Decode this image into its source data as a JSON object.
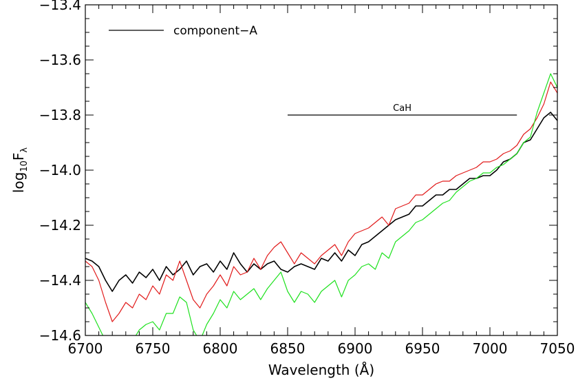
{
  "chart_data": {
    "type": "line",
    "title": "",
    "xlabel": "Wavelength (Å)",
    "ylabel_base": "log",
    "ylabel_sub": "10",
    "ylabel_main": "F",
    "ylabel_main_sub": "λ",
    "xlim": [
      6700,
      7050
    ],
    "ylim": [
      -14.6,
      -13.4
    ],
    "x_ticks": [
      6700,
      6750,
      6800,
      6850,
      6900,
      6950,
      7000,
      7050
    ],
    "x_tick_labels": [
      "6700",
      "6750",
      "6800",
      "6850",
      "6900",
      "6950",
      "7000",
      "7050"
    ],
    "y_ticks": [
      -14.6,
      -14.4,
      -14.2,
      -14.0,
      -13.8,
      -13.6,
      -13.4
    ],
    "y_tick_labels": [
      "−14.6",
      "−14.4",
      "−14.2",
      "−14.0",
      "−13.8",
      "−13.6",
      "−13.4"
    ],
    "grid": false,
    "legend": {
      "placement": "top-left",
      "entries": [
        {
          "label": "component−A",
          "color": "#000000"
        }
      ]
    },
    "annotation": {
      "label": "CaH",
      "x_start": 6850,
      "x_end": 7020,
      "y": -13.8
    },
    "series": [
      {
        "color": "#000000",
        "x": [
          6700,
          6705,
          6710,
          6715,
          6720,
          6725,
          6730,
          6735,
          6740,
          6745,
          6750,
          6755,
          6760,
          6765,
          6770,
          6775,
          6780,
          6785,
          6790,
          6795,
          6800,
          6805,
          6810,
          6815,
          6820,
          6825,
          6830,
          6835,
          6840,
          6845,
          6850,
          6855,
          6860,
          6865,
          6870,
          6875,
          6880,
          6885,
          6890,
          6895,
          6900,
          6905,
          6910,
          6915,
          6920,
          6925,
          6930,
          6935,
          6940,
          6945,
          6950,
          6955,
          6960,
          6965,
          6970,
          6975,
          6980,
          6985,
          6990,
          6995,
          7000,
          7005,
          7010,
          7015,
          7020,
          7025,
          7030,
          7035,
          7040,
          7045,
          7050
        ],
        "y": [
          -14.32,
          -14.33,
          -14.35,
          -14.4,
          -14.44,
          -14.4,
          -14.38,
          -14.41,
          -14.37,
          -14.39,
          -14.36,
          -14.4,
          -14.35,
          -14.38,
          -14.36,
          -14.33,
          -14.38,
          -14.35,
          -14.34,
          -14.37,
          -14.33,
          -14.36,
          -14.3,
          -14.34,
          -14.37,
          -14.34,
          -14.36,
          -14.34,
          -14.33,
          -14.36,
          -14.37,
          -14.35,
          -14.34,
          -14.35,
          -14.36,
          -14.32,
          -14.33,
          -14.3,
          -14.33,
          -14.29,
          -14.31,
          -14.27,
          -14.26,
          -14.24,
          -14.22,
          -14.2,
          -14.18,
          -14.17,
          -14.16,
          -14.13,
          -14.13,
          -14.11,
          -14.09,
          -14.09,
          -14.07,
          -14.07,
          -14.05,
          -14.03,
          -14.03,
          -14.02,
          -14.02,
          -14.0,
          -13.97,
          -13.96,
          -13.94,
          -13.9,
          -13.89,
          -13.85,
          -13.81,
          -13.79,
          -13.82
        ]
      },
      {
        "color": "#e11a1a",
        "x": [
          6700,
          6705,
          6710,
          6715,
          6720,
          6725,
          6730,
          6735,
          6740,
          6745,
          6750,
          6755,
          6760,
          6765,
          6770,
          6775,
          6780,
          6785,
          6790,
          6795,
          6800,
          6805,
          6810,
          6815,
          6820,
          6825,
          6830,
          6835,
          6840,
          6845,
          6850,
          6855,
          6860,
          6865,
          6870,
          6875,
          6880,
          6885,
          6890,
          6895,
          6900,
          6905,
          6910,
          6915,
          6920,
          6925,
          6930,
          6935,
          6940,
          6945,
          6950,
          6955,
          6960,
          6965,
          6970,
          6975,
          6980,
          6985,
          6990,
          6995,
          7000,
          7005,
          7010,
          7015,
          7020,
          7025,
          7030,
          7035,
          7040,
          7045,
          7050
        ],
        "y": [
          -14.33,
          -14.35,
          -14.4,
          -14.48,
          -14.55,
          -14.52,
          -14.48,
          -14.5,
          -14.45,
          -14.47,
          -14.42,
          -14.45,
          -14.38,
          -14.4,
          -14.33,
          -14.4,
          -14.47,
          -14.5,
          -14.45,
          -14.42,
          -14.38,
          -14.42,
          -14.35,
          -14.38,
          -14.37,
          -14.32,
          -14.36,
          -14.31,
          -14.28,
          -14.26,
          -14.3,
          -14.34,
          -14.3,
          -14.32,
          -14.34,
          -14.31,
          -14.29,
          -14.27,
          -14.31,
          -14.26,
          -14.23,
          -14.22,
          -14.21,
          -14.19,
          -14.17,
          -14.2,
          -14.14,
          -14.13,
          -14.12,
          -14.09,
          -14.09,
          -14.07,
          -14.05,
          -14.04,
          -14.04,
          -14.02,
          -14.01,
          -14.0,
          -13.99,
          -13.97,
          -13.97,
          -13.96,
          -13.94,
          -13.93,
          -13.91,
          -13.87,
          -13.85,
          -13.81,
          -13.76,
          -13.68,
          -13.72
        ]
      },
      {
        "color": "#1ee11e",
        "x": [
          6700,
          6705,
          6710,
          6715,
          6720,
          6725,
          6730,
          6735,
          6740,
          6745,
          6750,
          6755,
          6760,
          6765,
          6770,
          6775,
          6780,
          6785,
          6790,
          6795,
          6800,
          6805,
          6810,
          6815,
          6820,
          6825,
          6830,
          6835,
          6840,
          6845,
          6850,
          6855,
          6860,
          6865,
          6870,
          6875,
          6880,
          6885,
          6890,
          6895,
          6900,
          6905,
          6910,
          6915,
          6920,
          6925,
          6930,
          6935,
          6940,
          6945,
          6950,
          6955,
          6960,
          6965,
          6970,
          6975,
          6980,
          6985,
          6990,
          6995,
          7000,
          7005,
          7010,
          7015,
          7020,
          7025,
          7030,
          7035,
          7040,
          7045,
          7050
        ],
        "y": [
          -14.48,
          -14.52,
          -14.57,
          -14.62,
          -14.66,
          -14.64,
          -14.6,
          -14.62,
          -14.58,
          -14.56,
          -14.55,
          -14.58,
          -14.52,
          -14.52,
          -14.46,
          -14.48,
          -14.58,
          -14.62,
          -14.56,
          -14.52,
          -14.47,
          -14.5,
          -14.44,
          -14.47,
          -14.45,
          -14.43,
          -14.47,
          -14.43,
          -14.4,
          -14.37,
          -14.44,
          -14.48,
          -14.44,
          -14.45,
          -14.48,
          -14.44,
          -14.42,
          -14.4,
          -14.46,
          -14.4,
          -14.38,
          -14.35,
          -14.34,
          -14.36,
          -14.3,
          -14.32,
          -14.26,
          -14.24,
          -14.22,
          -14.19,
          -14.18,
          -14.16,
          -14.14,
          -14.12,
          -14.11,
          -14.08,
          -14.06,
          -14.04,
          -14.03,
          -14.01,
          -14.01,
          -13.99,
          -13.98,
          -13.96,
          -13.94,
          -13.9,
          -13.88,
          -13.79,
          -13.72,
          -13.65,
          -13.7
        ]
      }
    ]
  }
}
